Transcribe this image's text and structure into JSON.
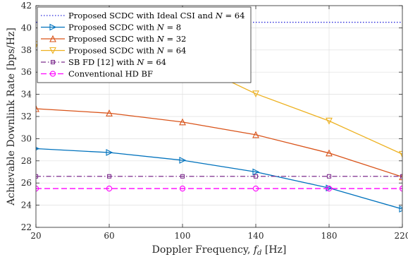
{
  "chart_data": {
    "type": "line",
    "title": "",
    "xlabel": "Doppler Frequency, f_d [Hz]",
    "xlabel_parts": {
      "main": "Doppler Frequency, ",
      "var": "f",
      "sub": "d",
      "unit": " [Hz]"
    },
    "ylabel": "Achievable Downlink Rate [bps/Hz]",
    "x": [
      20,
      60,
      100,
      140,
      180,
      220
    ],
    "xlim": [
      20,
      220
    ],
    "ylim": [
      22,
      42
    ],
    "xticks": [
      20,
      60,
      100,
      140,
      180,
      220
    ],
    "yticks": [
      22,
      24,
      26,
      28,
      30,
      32,
      34,
      36,
      38,
      40,
      42
    ],
    "grid": true,
    "legend_position": "top-left",
    "series": [
      {
        "name": "Proposed SCDC with Ideal CSI and N = 64",
        "legend_parts": {
          "pre": "Proposed SCDC with Ideal CSI and ",
          "var": "N",
          "post": " = 64"
        },
        "values": [
          40.5,
          40.5,
          40.5,
          40.5,
          40.5,
          40.5
        ],
        "color": "#2b2bdc",
        "dash": "1.5 2.5",
        "marker": "none"
      },
      {
        "name": "Proposed SCDC with N = 8",
        "legend_parts": {
          "pre": "Proposed SCDC with ",
          "var": "N",
          "post": " = 8"
        },
        "values": [
          29.1,
          28.75,
          28.05,
          27.0,
          25.55,
          23.65
        ],
        "color": "#0072BD",
        "dash": "",
        "marker": "triangle-right"
      },
      {
        "name": "Proposed SCDC with N = 32",
        "legend_parts": {
          "pre": "Proposed SCDC with ",
          "var": "N",
          "post": " = 32"
        },
        "values": [
          32.7,
          32.3,
          31.5,
          30.35,
          28.7,
          26.55
        ],
        "color": "#D95319",
        "dash": "",
        "marker": "triangle-up"
      },
      {
        "name": "Proposed SCDC with N = 64",
        "legend_parts": {
          "pre": "Proposed SCDC with ",
          "var": "N",
          "post": " = 64"
        },
        "values": [
          38.5,
          38.0,
          37.2,
          34.05,
          31.6,
          28.6
        ],
        "color": "#EDB120",
        "dash": "",
        "marker": "triangle-down"
      },
      {
        "name": "SB FD [12] with N = 64",
        "legend_parts": {
          "pre": "SB FD [12] with ",
          "var": "N",
          "post": " = 64"
        },
        "values": [
          26.6,
          26.6,
          26.6,
          26.6,
          26.6,
          26.6
        ],
        "color": "#7E2F8E",
        "dash": "7 3 1.5 3",
        "marker": "square"
      },
      {
        "name": "Conventional HD BF",
        "legend_parts": {
          "pre": "Conventional HD BF",
          "var": "",
          "post": ""
        },
        "values": [
          25.5,
          25.5,
          25.5,
          25.5,
          25.5,
          25.5
        ],
        "color": "#FF00FF",
        "dash": "8 4",
        "marker": "circle"
      }
    ]
  }
}
